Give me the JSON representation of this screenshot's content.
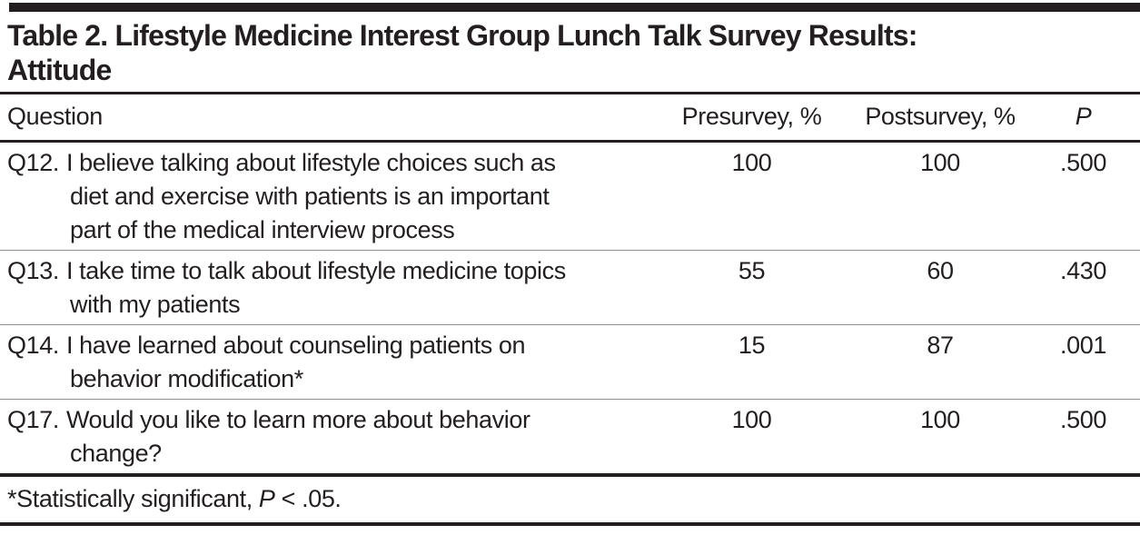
{
  "colors": {
    "ink": "#231f20",
    "row_rule_gray": "#8f8f8f",
    "paper": "#ffffff"
  },
  "title_lines": [
    "Table 2. Lifestyle Medicine Interest Group Lunch Talk Survey Results:",
    "Attitude"
  ],
  "table": {
    "columns": [
      "Question",
      "Presurvey, %",
      "Postsurvey, %",
      "P"
    ],
    "rows": [
      {
        "label": "Q12.",
        "lines": [
          "I believe talking about lifestyle choices such as",
          "diet and exercise with patients is an important",
          "part of the medical interview process"
        ],
        "presurvey": "100",
        "postsurvey": "100",
        "p": ".500"
      },
      {
        "label": "Q13.",
        "lines": [
          "I take time to talk about lifestyle medicine topics",
          "with my patients"
        ],
        "presurvey": "55",
        "postsurvey": "60",
        "p": ".430"
      },
      {
        "label": "Q14.",
        "lines": [
          "I have learned about counseling patients on",
          "behavior modification*"
        ],
        "presurvey": "15",
        "postsurvey": "87",
        "p": ".001"
      },
      {
        "label": "Q17.",
        "lines": [
          "Would you like to learn more about behavior",
          "change?"
        ],
        "presurvey": "100",
        "postsurvey": "100",
        "p": ".500"
      }
    ]
  },
  "footnote": {
    "prefix": "*Statistically significant, ",
    "p_symbol": "P",
    "suffix": " < .05."
  }
}
